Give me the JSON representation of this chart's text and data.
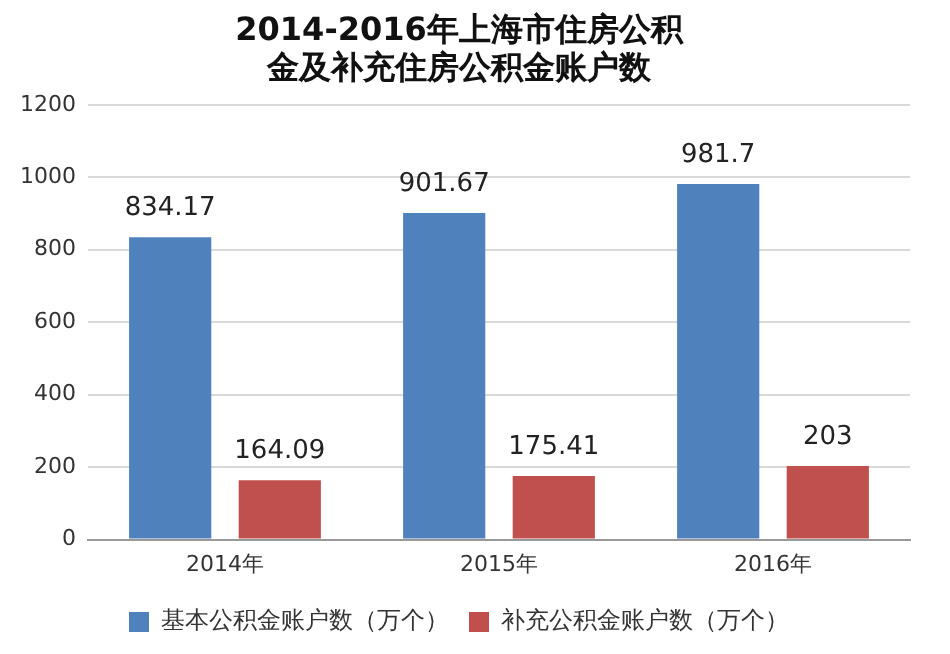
{
  "chart_data": {
    "type": "bar",
    "title": "2014-2016年上海市住房公积金及补充住房公积金账户数",
    "categories": [
      "2014年",
      "2015年",
      "2016年"
    ],
    "series": [
      {
        "name": "基本公积金账户数（万个）",
        "color": "#4f81bd",
        "values": [
          834.17,
          901.67,
          981.7
        ]
      },
      {
        "name": "补充公积金账户数（万个）",
        "color": "#c0504d",
        "values": [
          164.09,
          175.41,
          203
        ]
      }
    ],
    "ylim": [
      0,
      1200
    ],
    "yticks": [
      0,
      200,
      400,
      600,
      800,
      1000,
      1200
    ],
    "grid": "y",
    "legend": "bottom",
    "data_labels": true
  }
}
